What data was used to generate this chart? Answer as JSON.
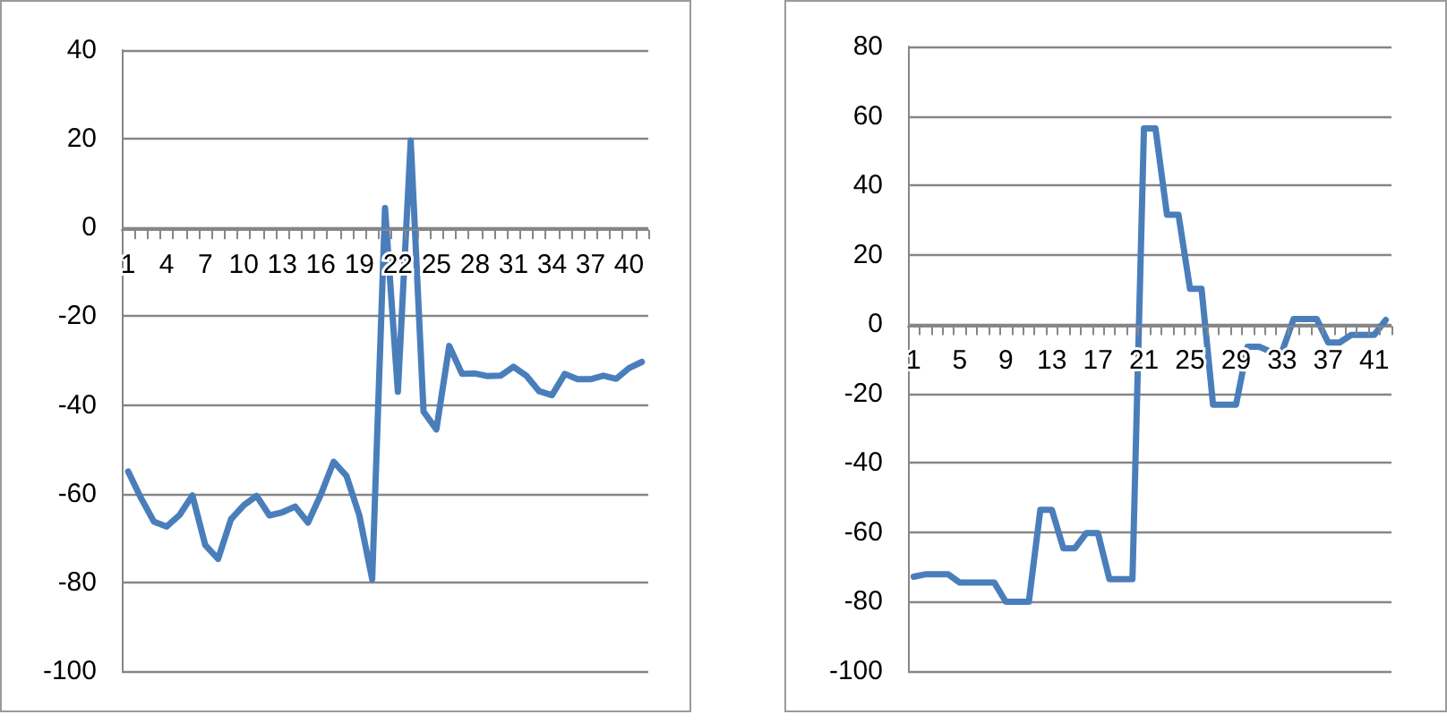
{
  "chart_data": [
    {
      "type": "line",
      "categories": [
        "1",
        null,
        null,
        "4",
        null,
        null,
        "7",
        null,
        null,
        "10",
        null,
        null,
        "13",
        null,
        null,
        "16",
        null,
        null,
        "19",
        null,
        null,
        "22",
        null,
        null,
        "25",
        null,
        null,
        "28",
        null,
        null,
        "31",
        null,
        null,
        "34",
        null,
        null,
        "37",
        null,
        null,
        "40",
        null
      ],
      "series": [
        {
          "color": "#4a7ebb",
          "values": [
            -55,
            -61,
            -66.3,
            -67.4,
            -64.8,
            -60.4,
            -71.6,
            -74.7,
            -65.8,
            -62.6,
            -60.5,
            -64.9,
            -64.2,
            -62.9,
            -66.5,
            -60.2,
            -52.8,
            -56,
            -64.9,
            -79.3,
            4.4,
            -37,
            19.6,
            -41.5,
            -45.5,
            -26.7,
            -33,
            -32.9,
            -33.5,
            -33.4,
            -31.4,
            -33.4,
            -36.9,
            -37.8,
            -33,
            -34.2,
            -34.2,
            -33.4,
            -34.1,
            -31.7,
            -30.3
          ]
        }
      ],
      "ylim": [
        -100,
        40
      ],
      "yticks": [
        -100,
        -80,
        -60,
        -40,
        -20,
        0,
        20,
        40
      ],
      "grid": "y",
      "marker": "none",
      "line_style": "solid"
    },
    {
      "type": "line",
      "categories": [
        "1",
        null,
        null,
        null,
        "5",
        null,
        null,
        null,
        "9",
        null,
        null,
        null,
        "13",
        null,
        null,
        null,
        "17",
        null,
        null,
        null,
        "21",
        null,
        null,
        null,
        "25",
        null,
        null,
        null,
        "29",
        null,
        null,
        null,
        "33",
        null,
        null,
        null,
        "37",
        null,
        null,
        null,
        "41",
        null
      ],
      "series": [
        {
          "color": "#4a7ebb",
          "values": [
            -72.8,
            -72.1,
            -72.1,
            -72.1,
            -74.5,
            -74.5,
            -74.5,
            -74.5,
            -80,
            -80,
            -80,
            -53.5,
            -53.5,
            -64.6,
            -64.6,
            -60.2,
            -60.2,
            -73.5,
            -73.5,
            -73.5,
            56.4,
            56.4,
            31.5,
            31.5,
            10.2,
            10.2,
            -23.2,
            -23.2,
            -23.2,
            -6.5,
            -6.5,
            -7.9,
            -7.9,
            1.5,
            1.5,
            1.5,
            -5.3,
            -5.3,
            -3.1,
            -3.1,
            -3.1,
            1.2
          ]
        }
      ],
      "ylim": [
        -100,
        80
      ],
      "yticks": [
        -100,
        -80,
        -60,
        -40,
        -20,
        0,
        20,
        40,
        60,
        80
      ],
      "grid": "y",
      "marker": "none",
      "line_style": "solid"
    }
  ]
}
